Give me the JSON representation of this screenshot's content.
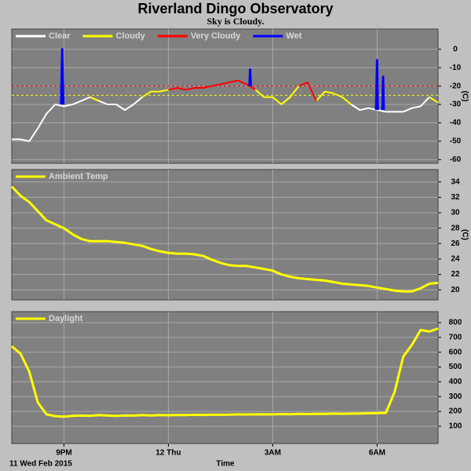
{
  "header": {
    "title": "Riverland Dingo Observatory",
    "subtitle": "Sky is Cloudy."
  },
  "footer": {
    "date": "11 Wed Feb 2015",
    "xlabel": "Time"
  },
  "chart_data": [
    {
      "type": "line",
      "ylabel": "(C)",
      "xlim": [
        19.5,
        31.75
      ],
      "ylim": [
        -62,
        11
      ],
      "xticks": [
        {
          "value": 21,
          "label": "9PM"
        },
        {
          "value": 24,
          "label": "12 Thu"
        },
        {
          "value": 27,
          "label": "3AM"
        },
        {
          "value": 30,
          "label": "6AM"
        }
      ],
      "yticks": [
        0,
        -10,
        -20,
        -30,
        -40,
        -50,
        -60
      ],
      "grid": true,
      "thresholds": [
        {
          "value": -20,
          "color": "#ff0000"
        },
        {
          "value": -25,
          "color": "#ffff00"
        }
      ],
      "x": [
        19.5,
        19.75,
        20,
        20.25,
        20.5,
        20.75,
        21,
        21.25,
        21.5,
        21.75,
        22,
        22.25,
        22.5,
        22.75,
        23,
        23.25,
        23.5,
        23.75,
        24,
        24.25,
        24.5,
        24.75,
        25,
        25.25,
        25.5,
        25.75,
        26,
        26.25,
        26.5,
        26.75,
        27,
        27.25,
        27.5,
        27.75,
        28,
        28.25,
        28.5,
        28.75,
        29,
        29.25,
        29.5,
        29.75,
        30,
        30.25,
        30.5,
        30.75,
        31,
        31.25,
        31.5,
        31.75
      ],
      "series": [
        {
          "name": "Clear",
          "color": "#ffffff",
          "values": [
            -49,
            -49,
            -50,
            -43,
            -35,
            -30,
            -31,
            -30,
            -28,
            -26,
            -28,
            -30,
            -30,
            -33,
            -30,
            -26,
            null,
            null,
            null,
            null,
            null,
            null,
            null,
            null,
            null,
            null,
            null,
            null,
            null,
            null,
            null,
            -30,
            -26,
            null,
            null,
            null,
            null,
            null,
            null,
            -30,
            -33,
            -32,
            -33,
            -34,
            -34,
            -34,
            -32,
            -31,
            -26,
            null
          ]
        },
        {
          "name": "Cloudy",
          "color": "#ffff00",
          "values": [
            null,
            null,
            null,
            null,
            null,
            null,
            null,
            null,
            null,
            -26,
            -28,
            null,
            null,
            null,
            null,
            -26,
            -23,
            -23,
            -22,
            null,
            null,
            null,
            null,
            null,
            null,
            null,
            null,
            null,
            -22,
            -26,
            -26,
            -30,
            -26,
            -20,
            null,
            -28,
            -23,
            -24,
            -26,
            -30,
            null,
            null,
            null,
            null,
            null,
            null,
            null,
            null,
            -26,
            -29
          ]
        },
        {
          "name": "Very Cloudy",
          "color": "#ff0000",
          "values": [
            null,
            null,
            null,
            null,
            null,
            null,
            null,
            null,
            null,
            null,
            null,
            null,
            null,
            null,
            null,
            null,
            null,
            null,
            -22,
            -21,
            -22,
            -21,
            -21,
            -20,
            -19,
            -18,
            -17,
            -19,
            -22,
            null,
            null,
            null,
            null,
            -20,
            -18,
            -28,
            null,
            null,
            null,
            null,
            null,
            null,
            null,
            null,
            null,
            null,
            null,
            null,
            null,
            null
          ]
        },
        {
          "name": "Wet",
          "color": "#0000ff",
          "width": 3,
          "x": [
            20.92,
            20.95,
            20.98,
            23,
            26.33,
            26.35,
            26.37,
            28,
            29.97,
            30,
            30.02,
            30.1,
            30.15,
            30.17,
            30.19
          ],
          "values": [
            -30,
            0,
            -30,
            null,
            -20,
            -11,
            -20,
            null,
            -33,
            -6,
            -33,
            null,
            -33,
            -15,
            -33
          ]
        }
      ]
    },
    {
      "type": "line",
      "ylabel": "(C)",
      "xlim": [
        19.5,
        31.75
      ],
      "ylim": [
        18.7,
        35.6
      ],
      "xticks": [
        {
          "value": 21,
          "label": "9PM"
        },
        {
          "value": 24,
          "label": "12 Thu"
        },
        {
          "value": 27,
          "label": "3AM"
        },
        {
          "value": 30,
          "label": "6AM"
        }
      ],
      "yticks": [
        20,
        22,
        24,
        26,
        28,
        30,
        32,
        34
      ],
      "grid": true,
      "x": [
        19.5,
        19.75,
        20,
        20.25,
        20.5,
        20.75,
        21,
        21.25,
        21.5,
        21.75,
        22,
        22.25,
        22.5,
        22.75,
        23,
        23.25,
        23.5,
        23.75,
        24,
        24.25,
        24.5,
        24.75,
        25,
        25.25,
        25.5,
        25.75,
        26,
        26.25,
        26.5,
        26.75,
        27,
        27.25,
        27.5,
        27.75,
        28,
        28.25,
        28.5,
        28.75,
        29,
        29.25,
        29.5,
        29.75,
        30,
        30.25,
        30.5,
        30.75,
        31,
        31.25,
        31.5,
        31.75
      ],
      "series": [
        {
          "name": "Ambient Temp",
          "color": "#ffff00",
          "width": 3,
          "values": [
            33.4,
            32.2,
            31.4,
            30.2,
            29.0,
            28.5,
            28.0,
            27.2,
            26.6,
            26.3,
            26.3,
            26.3,
            26.2,
            26.1,
            25.9,
            25.7,
            25.3,
            25.0,
            24.8,
            24.7,
            24.7,
            24.6,
            24.4,
            23.9,
            23.5,
            23.2,
            23.1,
            23.1,
            22.9,
            22.7,
            22.5,
            22.0,
            21.7,
            21.5,
            21.4,
            21.3,
            21.2,
            21.0,
            20.8,
            20.7,
            20.6,
            20.5,
            20.3,
            20.1,
            19.9,
            19.8,
            19.8,
            20.2,
            20.8,
            20.9
          ]
        }
      ]
    },
    {
      "type": "line",
      "xlim": [
        19.5,
        31.75
      ],
      "ylim": [
        -17,
        874
      ],
      "xticks": [
        {
          "value": 21,
          "label": "9PM"
        },
        {
          "value": 24,
          "label": "12 Thu"
        },
        {
          "value": 27,
          "label": "3AM"
        },
        {
          "value": 30,
          "label": "6AM"
        }
      ],
      "yticks": [
        100,
        200,
        300,
        400,
        500,
        600,
        700,
        800
      ],
      "grid": true,
      "x": [
        19.5,
        19.75,
        20,
        20.25,
        20.5,
        20.75,
        21,
        21.25,
        21.5,
        21.75,
        22,
        22.25,
        22.5,
        22.75,
        23,
        23.25,
        23.5,
        23.75,
        24,
        24.25,
        24.5,
        24.75,
        25,
        25.25,
        25.5,
        25.75,
        26,
        26.25,
        26.5,
        26.75,
        27,
        27.25,
        27.5,
        27.75,
        28,
        28.25,
        28.5,
        28.75,
        29,
        29.25,
        29.5,
        29.75,
        30,
        30.25,
        30.5,
        30.75,
        31,
        31.25,
        31.5,
        31.75
      ],
      "series": [
        {
          "name": "Daylight",
          "color": "#ffff00",
          "width": 3,
          "values": [
            640,
            590,
            470,
            260,
            180,
            168,
            165,
            170,
            172,
            170,
            175,
            172,
            170,
            173,
            172,
            175,
            173,
            175,
            174,
            176,
            175,
            177,
            176,
            178,
            177,
            178,
            180,
            179,
            180,
            181,
            180,
            182,
            181,
            183,
            182,
            184,
            183,
            185,
            184,
            185,
            186,
            187,
            188,
            190,
            330,
            570,
            650,
            750,
            740,
            760
          ]
        }
      ]
    }
  ]
}
